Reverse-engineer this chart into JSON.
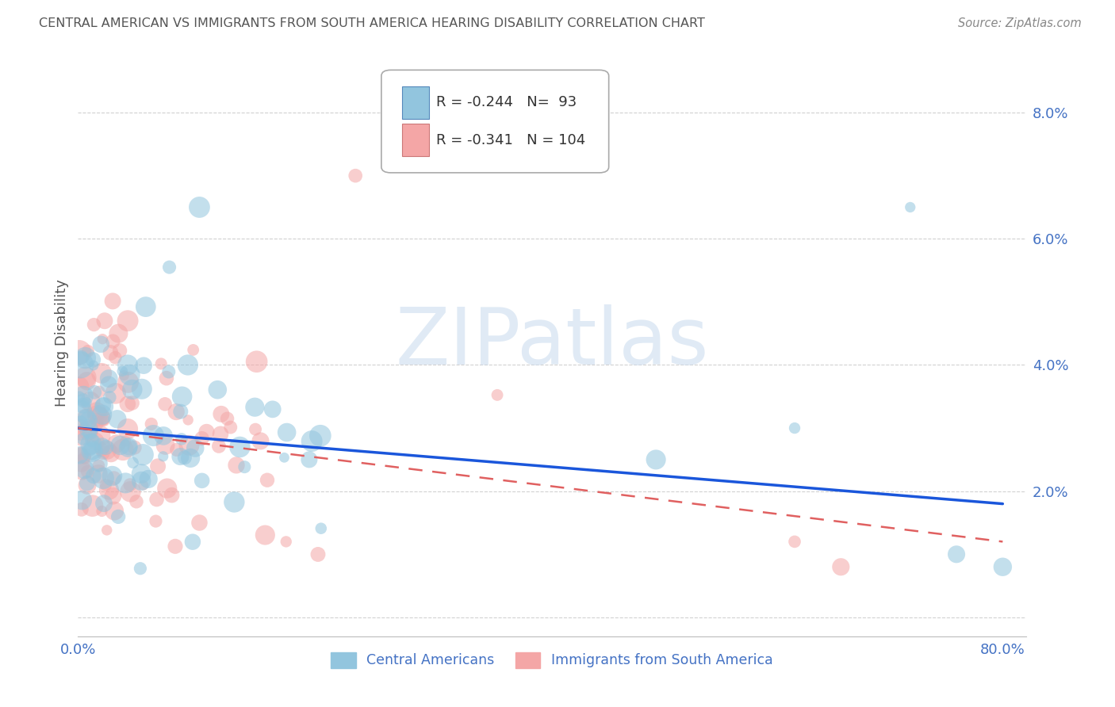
{
  "title": "CENTRAL AMERICAN VS IMMIGRANTS FROM SOUTH AMERICA HEARING DISABILITY CORRELATION CHART",
  "source": "Source: ZipAtlas.com",
  "ylabel": "Hearing Disability",
  "xlim": [
    0.0,
    0.82
  ],
  "ylim": [
    -0.003,
    0.09
  ],
  "yticks": [
    0.0,
    0.02,
    0.04,
    0.06,
    0.08
  ],
  "ytick_labels": [
    "",
    "2.0%",
    "4.0%",
    "6.0%",
    "8.0%"
  ],
  "xticks": [
    0.0,
    0.2,
    0.4,
    0.6,
    0.8
  ],
  "xtick_labels": [
    "0.0%",
    "",
    "",
    "",
    "80.0%"
  ],
  "blue_R": -0.244,
  "blue_N": 93,
  "pink_R": -0.341,
  "pink_N": 104,
  "blue_color": "#92c5de",
  "pink_color": "#f4a6a6",
  "blue_line_color": "#1a56db",
  "pink_line_color": "#e06060",
  "title_color": "#555555",
  "tick_color": "#4472c4",
  "watermark": "ZIPatlas",
  "legend_label_blue": "Central Americans",
  "legend_label_pink": "Immigrants from South America",
  "blue_line_start_y": 0.03,
  "blue_line_end_y": 0.018,
  "pink_line_start_y": 0.03,
  "pink_line_end_y": 0.012
}
